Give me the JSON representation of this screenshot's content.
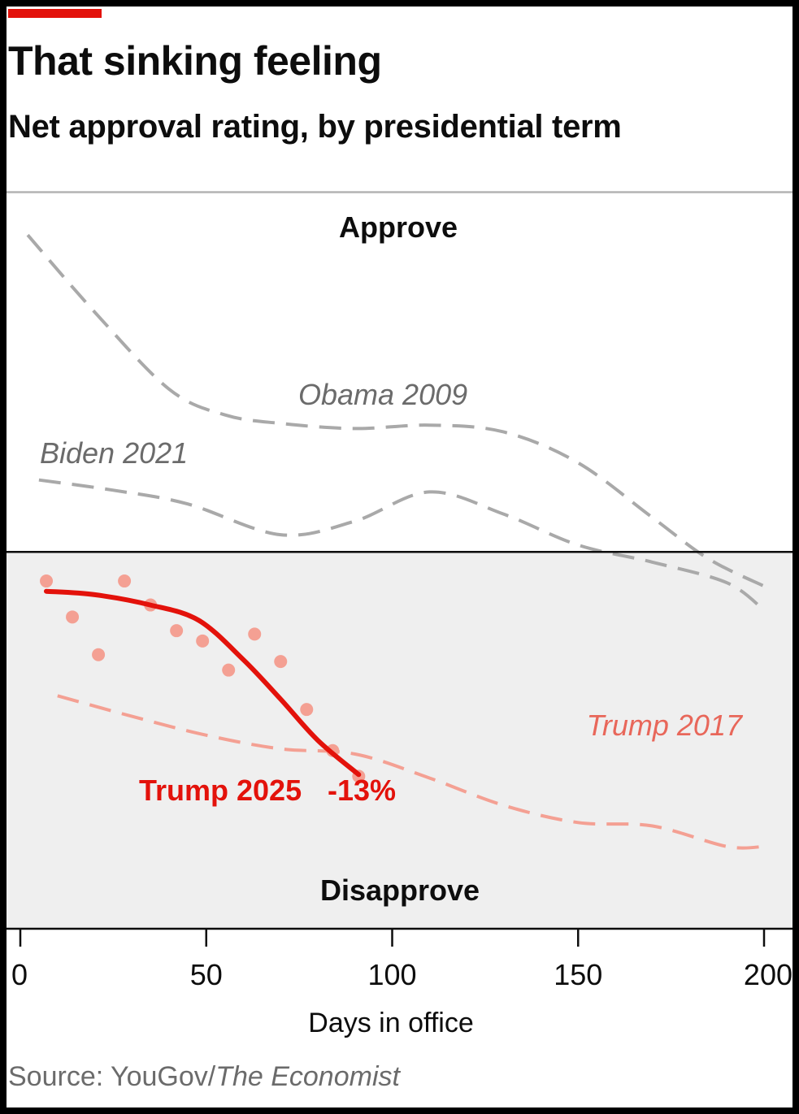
{
  "header": {
    "title": "That sinking feeling",
    "subtitle": "Net approval rating, by presidential term"
  },
  "source": {
    "prefix": "Source: YouGov/",
    "publication": "The Economist"
  },
  "colors": {
    "accent": "#e3120b",
    "trump2025_line": "#e3120b",
    "trump2025_points": "#f4a093",
    "trump2017": "#f4a093",
    "comparison": "#a9a9a9",
    "disapprove_band": "#efefef"
  },
  "chart_data": {
    "type": "line",
    "xlabel": "Days in office",
    "ylabel": "",
    "xlim": [
      0,
      200
    ],
    "ylim": [
      -22,
      21
    ],
    "x_ticks": [
      "0",
      "50",
      "100",
      "150",
      "200"
    ],
    "x_tick_values": [
      0,
      50,
      100,
      150,
      200
    ],
    "zero_line": 0,
    "regions": {
      "above_zero": "Approve",
      "below_zero": "Disapprove"
    },
    "grid": false,
    "series": [
      {
        "name": "Obama 2009",
        "style": "dashed",
        "x": [
          2,
          20,
          40,
          55,
          70,
          90,
          110,
          130,
          150,
          170,
          185,
          200
        ],
        "y": [
          18.5,
          14,
          9.5,
          8,
          7.5,
          7.2,
          7.4,
          7,
          5.2,
          2,
          -0.4,
          -2
        ]
      },
      {
        "name": "Biden 2021",
        "style": "dashed",
        "x": [
          5,
          25,
          45,
          70,
          90,
          110,
          130,
          150,
          170,
          190,
          200
        ],
        "y": [
          4.2,
          3.6,
          2.8,
          1,
          1.8,
          3.5,
          2.2,
          0.4,
          -0.6,
          -1.8,
          -3.4
        ]
      },
      {
        "name": "Trump 2017",
        "style": "dashed",
        "x": [
          10,
          30,
          50,
          70,
          90,
          110,
          130,
          150,
          170,
          190,
          200
        ],
        "y": [
          -8.4,
          -9.6,
          -10.7,
          -11.5,
          -11.8,
          -13.2,
          -14.8,
          -15.8,
          -16,
          -17.2,
          -17.2
        ]
      },
      {
        "name": "Trump 2025",
        "style": "solid",
        "x": [
          7,
          20,
          35,
          48,
          60,
          70,
          80,
          91
        ],
        "y": [
          -2.3,
          -2.5,
          -3.1,
          -4,
          -6.3,
          -8.6,
          -11,
          -13
        ],
        "end_label": "-13%",
        "points": {
          "x": [
            7,
            14,
            21,
            28,
            35,
            42,
            49,
            56,
            63,
            70,
            77,
            84,
            91
          ],
          "y": [
            -1.7,
            -3.8,
            -6,
            -1.7,
            -3.1,
            -4.6,
            -5.2,
            -6.9,
            -4.8,
            -6.4,
            -9.2,
            -11.6,
            -13.1
          ]
        }
      }
    ]
  }
}
